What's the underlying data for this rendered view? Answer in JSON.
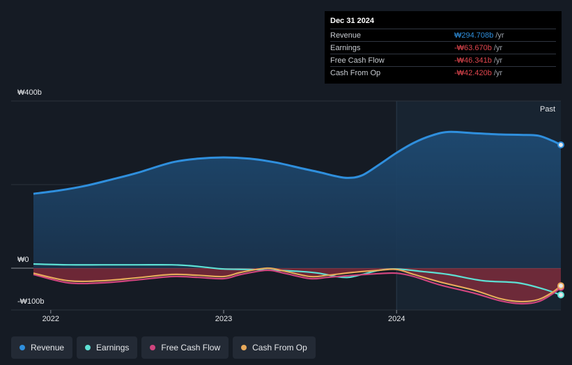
{
  "chart_data": {
    "type": "area",
    "y_axis_labels": [
      "₩400b",
      "₩0",
      "-₩100b"
    ],
    "x_axis_labels": [
      "2022",
      "2023",
      "2024"
    ],
    "past_label": "Past",
    "ylim": [
      -100,
      400
    ],
    "x_range": [
      2021.9,
      2024.95
    ],
    "past_start": 2024.0,
    "colors": {
      "revenue": "#2f8fdd",
      "earnings": "#5ee0d4",
      "free_cash_flow": "#d0457e",
      "cash_from_op": "#e8a95b",
      "negative_fill": "#8a2c3c"
    },
    "series": [
      {
        "name": "Revenue",
        "key": "revenue",
        "x": [
          2021.9,
          2022.05,
          2022.2,
          2022.35,
          2022.5,
          2022.7,
          2022.85,
          2023.0,
          2023.15,
          2023.3,
          2023.45,
          2023.55,
          2023.65,
          2023.72,
          2023.8,
          2023.9,
          2024.0,
          2024.1,
          2024.2,
          2024.3,
          2024.45,
          2024.6,
          2024.72,
          2024.82,
          2024.9,
          2024.95
        ],
        "values": [
          178,
          186,
          197,
          212,
          228,
          253,
          262,
          265,
          262,
          253,
          239,
          230,
          220,
          216,
          222,
          248,
          276,
          300,
          317,
          326,
          323,
          320,
          319,
          317,
          305,
          295
        ]
      },
      {
        "name": "Earnings",
        "key": "earnings",
        "x": [
          2021.9,
          2022.1,
          2022.3,
          2022.5,
          2022.7,
          2022.8,
          2022.9,
          2023.0,
          2023.15,
          2023.3,
          2023.45,
          2023.55,
          2023.65,
          2023.72,
          2023.8,
          2023.9,
          2024.0,
          2024.15,
          2024.3,
          2024.5,
          2024.7,
          2024.85,
          2024.95
        ],
        "values": [
          10,
          8,
          8,
          8,
          8,
          6,
          2,
          -2,
          -3,
          -5,
          -8,
          -12,
          -20,
          -22,
          -15,
          -5,
          -2,
          -8,
          -15,
          -30,
          -35,
          -50,
          -64
        ]
      },
      {
        "name": "Free Cash Flow",
        "key": "free_cash_flow",
        "x": [
          2021.9,
          2022.1,
          2022.3,
          2022.5,
          2022.7,
          2022.85,
          2023.0,
          2023.1,
          2023.25,
          2023.35,
          2023.5,
          2023.6,
          2023.75,
          2023.9,
          2024.0,
          2024.1,
          2024.25,
          2024.45,
          2024.6,
          2024.72,
          2024.82,
          2024.9,
          2024.95
        ],
        "values": [
          -15,
          -35,
          -35,
          -28,
          -20,
          -22,
          -25,
          -15,
          -5,
          -12,
          -25,
          -22,
          -17,
          -13,
          -12,
          -20,
          -40,
          -60,
          -78,
          -85,
          -80,
          -62,
          -46
        ]
      },
      {
        "name": "Cash From Op",
        "key": "cash_from_op",
        "x": [
          2021.9,
          2022.1,
          2022.3,
          2022.5,
          2022.7,
          2022.85,
          2023.0,
          2023.1,
          2023.25,
          2023.35,
          2023.5,
          2023.6,
          2023.75,
          2023.9,
          2024.0,
          2024.1,
          2024.25,
          2024.45,
          2024.6,
          2024.72,
          2024.82,
          2024.9,
          2024.95
        ],
        "values": [
          -12,
          -30,
          -30,
          -23,
          -15,
          -17,
          -20,
          -10,
          0,
          -7,
          -20,
          -17,
          -10,
          -5,
          -3,
          -15,
          -33,
          -53,
          -73,
          -80,
          -75,
          -58,
          -42
        ]
      }
    ]
  },
  "tooltip": {
    "date": "Dec 31 2024",
    "rows": [
      {
        "label": "Revenue",
        "value": "₩294.708b",
        "unit": "/yr",
        "color": "#2f8fdd"
      },
      {
        "label": "Earnings",
        "value": "-₩63.670b",
        "unit": "/yr",
        "color": "#e0464e"
      },
      {
        "label": "Free Cash Flow",
        "value": "-₩46.341b",
        "unit": "/yr",
        "color": "#e0464e"
      },
      {
        "label": "Cash From Op",
        "value": "-₩42.420b",
        "unit": "/yr",
        "color": "#e0464e"
      }
    ]
  },
  "legend": [
    {
      "label": "Revenue",
      "color": "#2f8fdd"
    },
    {
      "label": "Earnings",
      "color": "#5ee0d4"
    },
    {
      "label": "Free Cash Flow",
      "color": "#d0457e"
    },
    {
      "label": "Cash From Op",
      "color": "#e8a95b"
    }
  ]
}
